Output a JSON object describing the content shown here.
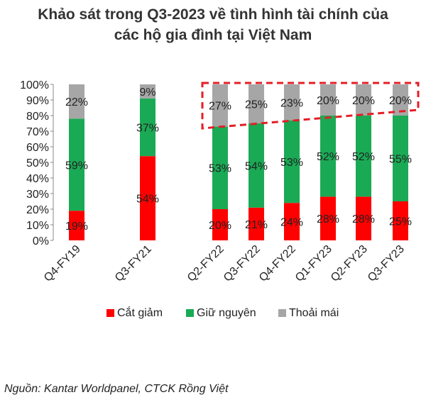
{
  "title_line1": "Khảo sát trong Q3-2023 về tình hình tài chính của",
  "title_line2": "các hộ gia đình tại Việt Nam",
  "source": "Nguồn: Kantar Worldpanel, CTCK Rồng Việt",
  "chart_data": {
    "type": "bar",
    "stacked": true,
    "categories": [
      "Q4-FY19",
      "Q3-FY21",
      "Q2-FY22",
      "Q3-FY22",
      "Q4-FY22",
      "Q1-FY23",
      "Q2-FY23",
      "Q3-FY23"
    ],
    "series": [
      {
        "name": "Cắt giảm",
        "color": "#ff0000",
        "values": [
          19,
          54,
          20,
          21,
          24,
          28,
          28,
          25
        ]
      },
      {
        "name": "Giữ nguyên",
        "color": "#1aaa55",
        "values": [
          59,
          37,
          53,
          54,
          53,
          52,
          52,
          55
        ]
      },
      {
        "name": "Thoải mái",
        "color": "#a6a6a6",
        "values": [
          22,
          9,
          27,
          25,
          23,
          20,
          20,
          20
        ]
      }
    ],
    "value_labels": [
      [
        "19%",
        "54%",
        "20%",
        "21%",
        "24%",
        "28%",
        "28%",
        "25%"
      ],
      [
        "59%",
        "37%",
        "53%",
        "54%",
        "53%",
        "52%",
        "52%",
        "55%"
      ],
      [
        "22%",
        "9%",
        "27%",
        "25%",
        "23%",
        "20%",
        "20%",
        "20%"
      ]
    ],
    "yticks": [
      "0%",
      "10%",
      "20%",
      "30%",
      "40%",
      "50%",
      "60%",
      "70%",
      "80%",
      "90%",
      "100%"
    ],
    "ylim": [
      0,
      100
    ],
    "legend_position": "bottom",
    "highlight_categories": [
      "Q2-FY22",
      "Q3-FY22",
      "Q4-FY22",
      "Q1-FY23",
      "Q2-FY23",
      "Q3-FY23"
    ],
    "highlight_series": "Thoải mái",
    "highlight_color": "#e41e26"
  }
}
